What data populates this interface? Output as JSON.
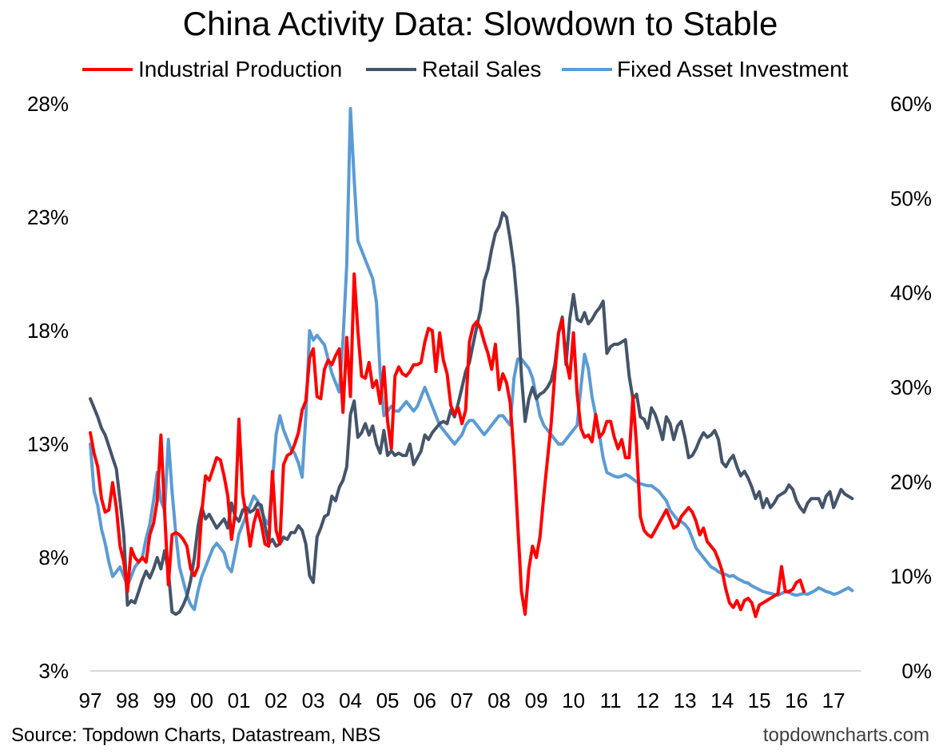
{
  "chart_data": {
    "type": "line",
    "title": "China Activity Data: Slowdown to Stable",
    "x_tick_labels": [
      "97",
      "98",
      "99",
      "00",
      "01",
      "02",
      "03",
      "04",
      "05",
      "06",
      "07",
      "08",
      "09",
      "10",
      "11",
      "12",
      "13",
      "14",
      "15",
      "16",
      "17"
    ],
    "x_range": [
      1997.0,
      2017.75
    ],
    "left_axis": {
      "tick_labels": [
        "28%",
        "23%",
        "18%",
        "13%",
        "8%",
        "3%"
      ],
      "ticks": [
        28,
        23,
        18,
        13,
        8,
        3
      ],
      "ylim": [
        3,
        28
      ]
    },
    "right_axis": {
      "tick_labels": [
        "60%",
        "50%",
        "40%",
        "30%",
        "20%",
        "10%",
        "0%"
      ],
      "ticks": [
        60,
        50,
        40,
        30,
        20,
        10,
        0
      ],
      "ylim": [
        0,
        60
      ]
    },
    "grid": false,
    "legend_position": "top",
    "series": [
      {
        "name": "Industrial Production",
        "color": "#FF0000",
        "axis": "left",
        "points": [
          [
            1997.0,
            13.5
          ],
          [
            1997.1,
            12.6
          ],
          [
            1997.2,
            12.0
          ],
          [
            1997.3,
            10.6
          ],
          [
            1997.4,
            10.0
          ],
          [
            1997.5,
            10.1
          ],
          [
            1997.6,
            11.3
          ],
          [
            1997.7,
            10.2
          ],
          [
            1997.8,
            8.5
          ],
          [
            1997.9,
            7.8
          ],
          [
            1998.0,
            6.5
          ],
          [
            1998.1,
            8.4
          ],
          [
            1998.2,
            8.0
          ],
          [
            1998.3,
            7.8
          ],
          [
            1998.4,
            8.0
          ],
          [
            1998.5,
            7.8
          ],
          [
            1998.6,
            9.0
          ],
          [
            1998.7,
            9.5
          ],
          [
            1998.8,
            10.5
          ],
          [
            1998.9,
            13.4
          ],
          [
            1999.0,
            10.0
          ],
          [
            1999.1,
            6.8
          ],
          [
            1999.2,
            9.0
          ],
          [
            1999.3,
            9.1
          ],
          [
            1999.4,
            9.0
          ],
          [
            1999.5,
            8.8
          ],
          [
            1999.6,
            8.5
          ],
          [
            1999.7,
            7.5
          ],
          [
            1999.8,
            7.2
          ],
          [
            1999.9,
            7.6
          ],
          [
            2000.0,
            10.0
          ],
          [
            2000.1,
            11.6
          ],
          [
            2000.2,
            11.4
          ],
          [
            2000.3,
            11.9
          ],
          [
            2000.4,
            12.4
          ],
          [
            2000.5,
            12.3
          ],
          [
            2000.6,
            11.6
          ],
          [
            2000.7,
            10.7
          ],
          [
            2000.8,
            8.8
          ],
          [
            2000.9,
            10.0
          ],
          [
            2001.0,
            14.1
          ],
          [
            2001.1,
            10.8
          ],
          [
            2001.2,
            9.8
          ],
          [
            2001.3,
            8.5
          ],
          [
            2001.4,
            9.5
          ],
          [
            2001.5,
            10.1
          ],
          [
            2001.6,
            9.5
          ],
          [
            2001.7,
            8.6
          ],
          [
            2001.8,
            8.5
          ],
          [
            2001.9,
            11.8
          ],
          [
            2002.0,
            9.2
          ],
          [
            2002.1,
            8.6
          ],
          [
            2002.2,
            12.1
          ],
          [
            2002.3,
            12.5
          ],
          [
            2002.4,
            12.6
          ],
          [
            2002.5,
            13.0
          ],
          [
            2002.6,
            13.5
          ],
          [
            2002.7,
            14.5
          ],
          [
            2002.8,
            14.9
          ],
          [
            2002.9,
            16.8
          ],
          [
            2003.0,
            17.2
          ],
          [
            2003.1,
            15.1
          ],
          [
            2003.2,
            15.0
          ],
          [
            2003.3,
            16.3
          ],
          [
            2003.4,
            16.7
          ],
          [
            2003.5,
            16.5
          ],
          [
            2003.6,
            16.9
          ],
          [
            2003.7,
            17.2
          ],
          [
            2003.8,
            14.4
          ],
          [
            2003.9,
            17.7
          ],
          [
            2004.0,
            15.1
          ],
          [
            2004.1,
            20.5
          ],
          [
            2004.2,
            18.0
          ],
          [
            2004.3,
            16.0
          ],
          [
            2004.4,
            15.9
          ],
          [
            2004.5,
            16.6
          ],
          [
            2004.6,
            15.5
          ],
          [
            2004.7,
            15.8
          ],
          [
            2004.8,
            14.8
          ],
          [
            2004.9,
            16.4
          ],
          [
            2005.0,
            14.0
          ],
          [
            2005.1,
            12.8
          ],
          [
            2005.2,
            16.0
          ],
          [
            2005.3,
            16.4
          ],
          [
            2005.4,
            16.1
          ],
          [
            2005.5,
            16.0
          ],
          [
            2005.6,
            16.2
          ],
          [
            2005.7,
            16.5
          ],
          [
            2005.8,
            16.5
          ],
          [
            2005.9,
            16.6
          ],
          [
            2006.0,
            17.5
          ],
          [
            2006.1,
            18.1
          ],
          [
            2006.2,
            18.0
          ],
          [
            2006.3,
            16.2
          ],
          [
            2006.4,
            17.9
          ],
          [
            2006.5,
            16.7
          ],
          [
            2006.6,
            16.1
          ],
          [
            2006.7,
            14.7
          ],
          [
            2006.8,
            14.3
          ],
          [
            2006.9,
            14.6
          ],
          [
            2007.0,
            13.9
          ],
          [
            2007.1,
            14.5
          ],
          [
            2007.2,
            17.5
          ],
          [
            2007.3,
            18.2
          ],
          [
            2007.4,
            18.4
          ],
          [
            2007.5,
            18.1
          ],
          [
            2007.6,
            17.5
          ],
          [
            2007.7,
            17.0
          ],
          [
            2007.8,
            16.3
          ],
          [
            2007.9,
            17.4
          ],
          [
            2008.0,
            15.4
          ],
          [
            2008.1,
            16.1
          ],
          [
            2008.2,
            15.7
          ],
          [
            2008.3,
            14.8
          ],
          [
            2008.4,
            12.5
          ],
          [
            2008.5,
            9.5
          ],
          [
            2008.6,
            6.5
          ],
          [
            2008.7,
            5.5
          ],
          [
            2008.8,
            7.5
          ],
          [
            2008.9,
            8.5
          ],
          [
            2009.0,
            8.0
          ],
          [
            2009.1,
            8.9
          ],
          [
            2009.2,
            10.7
          ],
          [
            2009.3,
            12.3
          ],
          [
            2009.4,
            13.9
          ],
          [
            2009.5,
            16.1
          ],
          [
            2009.6,
            17.9
          ],
          [
            2009.7,
            18.5
          ],
          [
            2009.8,
            16.7
          ],
          [
            2009.9,
            15.9
          ],
          [
            2010.0,
            17.9
          ],
          [
            2010.1,
            15.2
          ],
          [
            2010.2,
            13.7
          ],
          [
            2010.3,
            13.3
          ],
          [
            2010.4,
            13.4
          ],
          [
            2010.5,
            13.1
          ],
          [
            2010.6,
            14.3
          ],
          [
            2010.7,
            13.3
          ],
          [
            2010.8,
            13.5
          ],
          [
            2010.9,
            14.0
          ],
          [
            2011.0,
            14.0
          ],
          [
            2011.1,
            13.3
          ],
          [
            2011.2,
            12.8
          ],
          [
            2011.3,
            13.2
          ],
          [
            2011.4,
            12.4
          ],
          [
            2011.5,
            12.4
          ],
          [
            2011.6,
            15.1
          ],
          [
            2011.7,
            12.9
          ],
          [
            2011.8,
            9.8
          ],
          [
            2011.9,
            9.2
          ],
          [
            2012.0,
            9.0
          ],
          [
            2012.1,
            8.9
          ],
          [
            2012.2,
            9.2
          ],
          [
            2012.3,
            9.5
          ],
          [
            2012.4,
            9.8
          ],
          [
            2012.5,
            10.1
          ],
          [
            2012.6,
            9.7
          ],
          [
            2012.7,
            9.3
          ],
          [
            2012.8,
            9.4
          ],
          [
            2012.9,
            9.8
          ],
          [
            2013.0,
            10.0
          ],
          [
            2013.1,
            10.2
          ],
          [
            2013.2,
            10.0
          ],
          [
            2013.3,
            9.6
          ],
          [
            2013.4,
            9.0
          ],
          [
            2013.5,
            9.3
          ],
          [
            2013.6,
            8.7
          ],
          [
            2013.7,
            8.5
          ],
          [
            2013.8,
            8.3
          ],
          [
            2013.9,
            7.9
          ],
          [
            2014.0,
            7.4
          ],
          [
            2014.1,
            6.6
          ],
          [
            2014.2,
            6.0
          ],
          [
            2014.3,
            5.8
          ],
          [
            2014.4,
            6.1
          ],
          [
            2014.5,
            5.7
          ],
          [
            2014.6,
            6.1
          ],
          [
            2014.7,
            6.2
          ],
          [
            2014.8,
            6.0
          ],
          [
            2014.9,
            5.4
          ],
          [
            2015.0,
            5.9
          ],
          [
            2015.1,
            6.0
          ],
          [
            2015.2,
            6.1
          ],
          [
            2015.3,
            6.2
          ],
          [
            2015.4,
            6.3
          ],
          [
            2015.5,
            6.4
          ],
          [
            2015.6,
            7.6
          ],
          [
            2015.7,
            6.5
          ],
          [
            2015.8,
            6.5
          ],
          [
            2015.9,
            6.6
          ],
          [
            2016.0,
            6.9
          ],
          [
            2016.1,
            7.0
          ],
          [
            2016.2,
            6.5
          ]
        ],
        "_note": ""
      },
      {
        "name": "Retail Sales",
        "color": "#44546A",
        "axis": "left",
        "points": []
      },
      {
        "name": "Fixed Asset Investment",
        "color": "#5B9BD5",
        "axis": "right",
        "points": []
      }
    ]
  },
  "footer": {
    "source": "Source: Topdown Charts, Datastream, NBS",
    "site": "topdowncharts.com"
  }
}
